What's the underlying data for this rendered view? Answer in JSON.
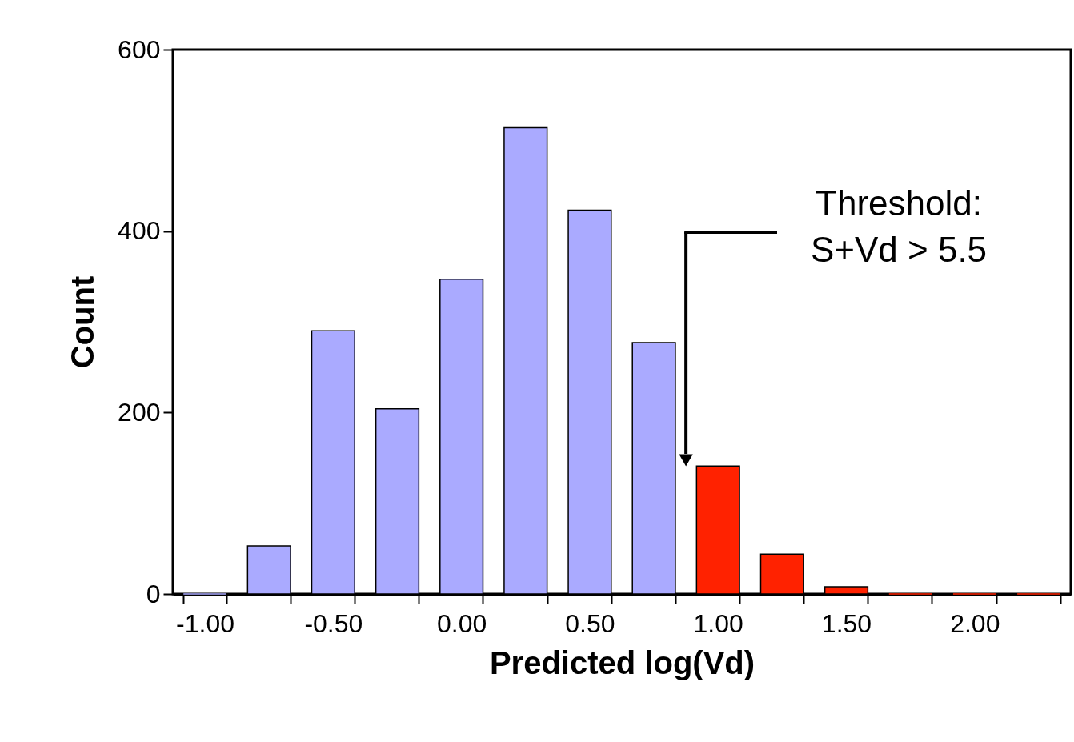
{
  "chart_data": {
    "type": "bar",
    "xlabel": "Predicted log(Vd)",
    "ylabel": "Count",
    "categories": [
      "-1.00",
      null,
      "-0.50",
      null,
      "0.00",
      null,
      "0.50",
      null,
      "1.00",
      null,
      "1.50",
      null,
      "2.00",
      null
    ],
    "values": [
      0,
      53,
      290,
      204,
      347,
      514,
      423,
      277,
      141,
      44,
      8,
      0,
      0,
      0
    ],
    "colors": [
      "#aaaaff",
      "#aaaaff",
      "#aaaaff",
      "#aaaaff",
      "#aaaaff",
      "#aaaaff",
      "#aaaaff",
      "#aaaaff",
      "#ff2200",
      "#ff2200",
      "#ff2200",
      "#ff2200",
      "#ff2200",
      "#ff2200"
    ],
    "ylim": [
      0,
      600
    ],
    "yticks": [
      0,
      200,
      400,
      600
    ],
    "grid": false,
    "annotations": [
      "Threshold:\nS+Vd > 5.5"
    ]
  }
}
